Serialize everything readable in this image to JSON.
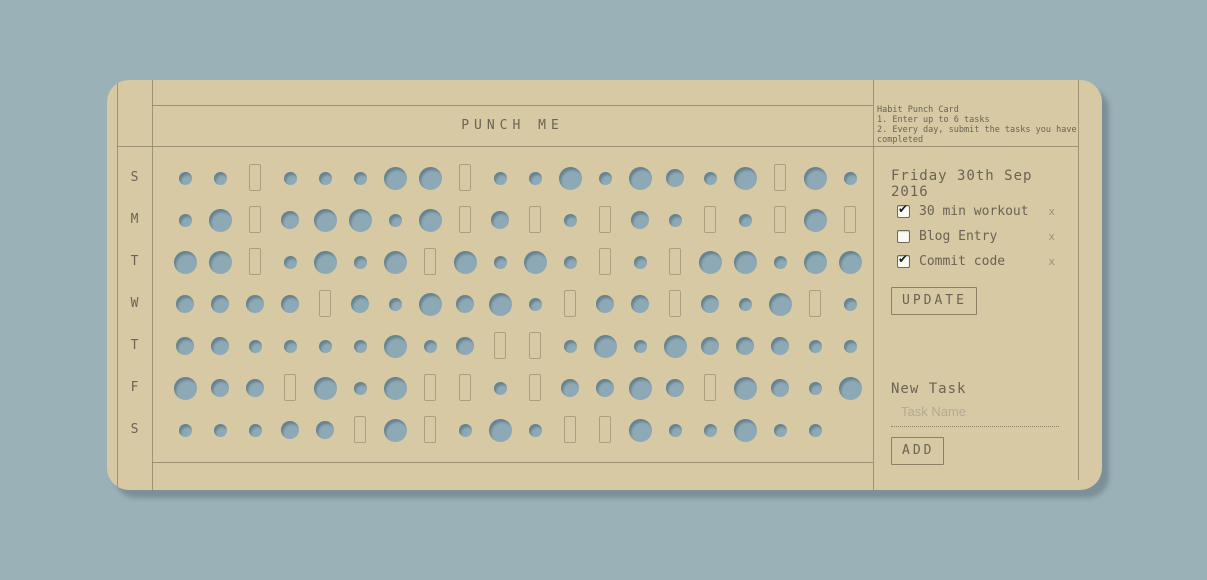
{
  "card": {
    "title": "PUNCH ME",
    "instructions": {
      "heading": "Habit Punch Card",
      "step1": "1. Enter up to 6 tasks",
      "step2": "2. Every day, submit the tasks you have completed"
    },
    "date": "Friday 30th Sep 2016",
    "tasks": [
      {
        "label": "30 min workout",
        "checked": true,
        "delete_label": "x"
      },
      {
        "label": "Blog Entry",
        "checked": false,
        "delete_label": "x"
      },
      {
        "label": "Commit code",
        "checked": true,
        "delete_label": "x"
      }
    ],
    "update_button": "UPDATE",
    "new_task": {
      "heading": "New Task",
      "placeholder": "Task Name",
      "add_button": "ADD"
    },
    "grid": {
      "days": [
        "S",
        "M",
        "T",
        "W",
        "T",
        "F",
        "S"
      ],
      "hole_legend": {
        "s": "small punched hole",
        "m": "medium punched hole",
        "l": "large punched hole",
        "r": "unpunched rectangular slot",
        "n": "no hole"
      },
      "rows": [
        "ssrsssllrsslslmslrls",
        "slrmllslrmrsrmsrsrlr",
        "llrslslrlslsrsrllsll",
        "mmmmrmslmlsrmmrmslrs",
        "mmsssslsmrrslslmmmss",
        "lmmrlslrrsrmmlmrlmsl",
        "sssmmrlrslsrrlsslssn"
      ]
    },
    "colors": {
      "page_background": "#9bb1b8",
      "card_background": "#d6c9a3",
      "hole_fill": "#8da9b6",
      "ruling_line": "#8b8165",
      "text": "#6b6355"
    }
  }
}
